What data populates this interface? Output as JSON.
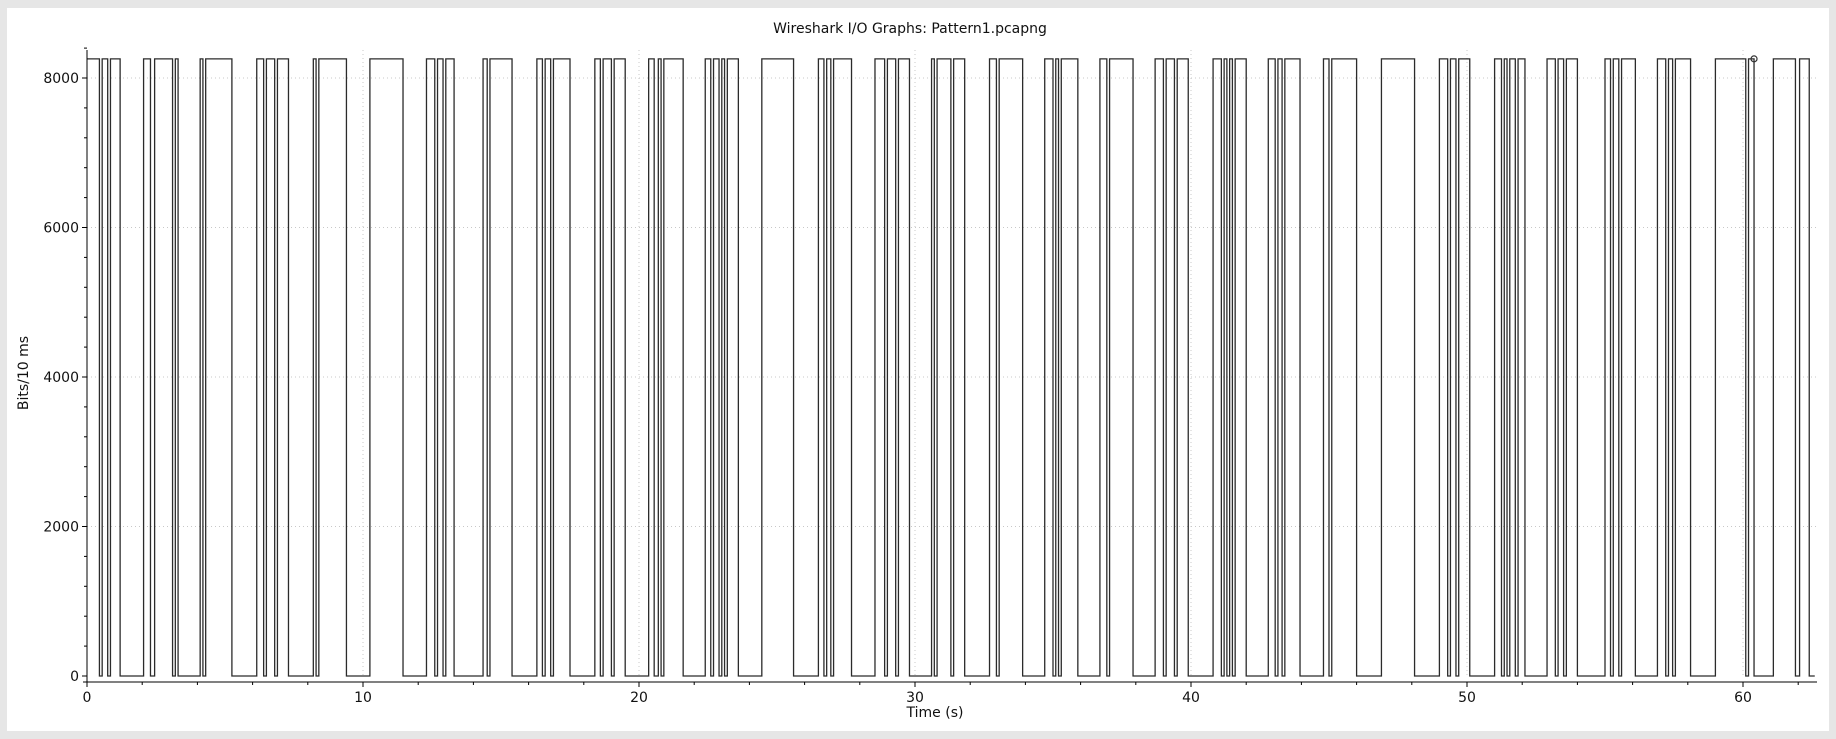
{
  "window": {
    "title": "Wireshark I/O Graphs: Pattern1.pcapng"
  },
  "chart_data": {
    "type": "line",
    "title": "Wireshark I/O Graphs: Pattern1.pcapng",
    "xlabel": "Time (s)",
    "ylabel": "Bits/10 ms",
    "xlim": [
      0,
      62.6
    ],
    "ylim": [
      0,
      8400
    ],
    "x_ticks": [
      0,
      10,
      20,
      30,
      40,
      50,
      60
    ],
    "x_tick_labels": [
      "0",
      "10",
      "20",
      "30",
      "40",
      "50",
      "60"
    ],
    "y_ticks": [
      0,
      2000,
      4000,
      6000,
      8000
    ],
    "y_tick_labels": [
      "0",
      "2000",
      "4000",
      "6000",
      "8000"
    ],
    "grid": true,
    "line_color": "#2b2b2b",
    "series": [
      {
        "step_high_value": 8256,
        "step_low_value": 0,
        "high_intervals": [
          [
            0.0,
            0.45
          ],
          [
            0.55,
            0.75
          ],
          [
            0.85,
            1.2
          ],
          [
            2.05,
            2.3
          ],
          [
            2.45,
            3.1
          ],
          [
            3.2,
            3.3
          ],
          [
            4.1,
            4.2
          ],
          [
            4.3,
            5.25
          ],
          [
            6.15,
            6.4
          ],
          [
            6.5,
            6.8
          ],
          [
            6.9,
            7.3
          ],
          [
            8.2,
            8.3
          ],
          [
            8.4,
            9.4
          ],
          [
            10.25,
            11.45
          ],
          [
            12.3,
            12.6
          ],
          [
            12.7,
            12.9
          ],
          [
            13.0,
            13.3
          ],
          [
            14.35,
            14.5
          ],
          [
            14.6,
            15.4
          ],
          [
            16.3,
            16.5
          ],
          [
            16.6,
            16.8
          ],
          [
            16.9,
            17.5
          ],
          [
            18.4,
            18.6
          ],
          [
            18.7,
            19.0
          ],
          [
            19.1,
            19.5
          ],
          [
            20.35,
            20.55
          ],
          [
            20.7,
            20.8
          ],
          [
            20.9,
            21.6
          ],
          [
            22.4,
            22.6
          ],
          [
            22.7,
            22.9
          ],
          [
            23.0,
            23.1
          ],
          [
            23.2,
            23.6
          ],
          [
            24.45,
            25.6
          ],
          [
            26.5,
            26.7
          ],
          [
            26.8,
            26.95
          ],
          [
            27.05,
            27.7
          ],
          [
            28.55,
            28.9
          ],
          [
            29.0,
            29.3
          ],
          [
            29.4,
            29.8
          ],
          [
            30.6,
            30.7
          ],
          [
            30.8,
            31.3
          ],
          [
            31.4,
            31.8
          ],
          [
            32.7,
            32.95
          ],
          [
            33.05,
            33.9
          ],
          [
            34.7,
            35.0
          ],
          [
            35.1,
            35.2
          ],
          [
            35.3,
            35.9
          ],
          [
            36.7,
            36.95
          ],
          [
            37.05,
            37.9
          ],
          [
            38.7,
            39.0
          ],
          [
            39.1,
            39.4
          ],
          [
            39.5,
            39.9
          ],
          [
            40.8,
            41.1
          ],
          [
            41.2,
            41.3
          ],
          [
            41.4,
            41.5
          ],
          [
            41.6,
            42.0
          ],
          [
            42.8,
            43.05
          ],
          [
            43.15,
            43.3
          ],
          [
            43.4,
            43.95
          ],
          [
            44.8,
            45.0
          ],
          [
            45.1,
            46.0
          ],
          [
            46.9,
            48.1
          ],
          [
            49.0,
            49.3
          ],
          [
            49.4,
            49.6
          ],
          [
            49.7,
            50.1
          ],
          [
            51.0,
            51.25
          ],
          [
            51.35,
            51.45
          ],
          [
            51.55,
            51.75
          ],
          [
            51.85,
            52.1
          ],
          [
            52.9,
            53.2
          ],
          [
            53.3,
            53.5
          ],
          [
            53.6,
            54.0
          ],
          [
            55.0,
            55.2
          ],
          [
            55.3,
            55.5
          ],
          [
            55.6,
            56.1
          ],
          [
            56.9,
            57.2
          ],
          [
            57.3,
            57.45
          ],
          [
            57.55,
            58.1
          ],
          [
            59.0,
            60.1
          ],
          [
            60.2,
            60.4
          ],
          [
            61.1,
            61.9
          ],
          [
            62.05,
            62.4
          ]
        ]
      }
    ]
  }
}
